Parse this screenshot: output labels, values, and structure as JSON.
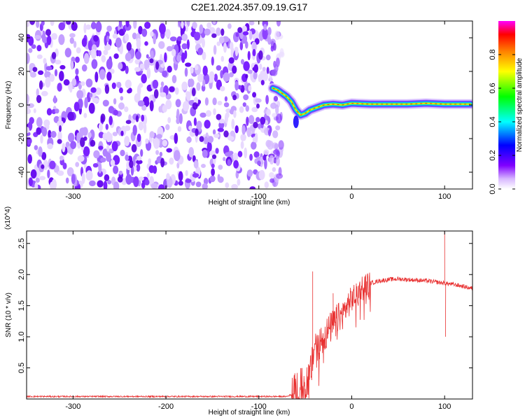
{
  "title": "C2E1.2024.357.09.19.G17",
  "chart_data": [
    {
      "type": "heatmap",
      "xlabel": "Height of straight line (km)",
      "ylabel": "Frequency (Hz)",
      "xlim": [
        -350,
        130
      ],
      "ylim": [
        -50,
        50
      ],
      "xticks": [
        -300,
        -200,
        -100,
        0,
        100
      ],
      "yticks": [
        -40,
        -20,
        0,
        20,
        40
      ],
      "colorbar": {
        "label": "Normalized spectral amplitude",
        "range": [
          0,
          1
        ],
        "ticks": [
          "0.0",
          "0.2",
          "0.4",
          "0.6",
          "0.8"
        ],
        "colors": [
          "#ffffff",
          "#8000ff",
          "#0000ff",
          "#00ffff",
          "#00ff00",
          "#ffff00",
          "#ff8000",
          "#ff0000",
          "#ff00ff"
        ]
      },
      "ridge": {
        "height_km": [
          -85,
          -80,
          -75,
          -70,
          -65,
          -60,
          -55,
          -50,
          -45,
          -40,
          -35,
          -30,
          -20,
          -10,
          0,
          20,
          40,
          60,
          80,
          100,
          128
        ],
        "frequency_hz": [
          10,
          9,
          7,
          5,
          2,
          -3,
          -6,
          -5,
          -3,
          -2,
          -1,
          0,
          0.5,
          0,
          1,
          0.5,
          0.5,
          0.5,
          1,
          0.5,
          0.5
        ]
      },
      "noise_region_km": [
        -350,
        -82
      ]
    },
    {
      "type": "line",
      "xlabel": "Height of straight line (km)",
      "ylabel": "SNR (10 * v/v)",
      "ylabel_scale": "(x10^4)",
      "xlim": [
        -350,
        130
      ],
      "ylim": [
        0,
        2.7
      ],
      "xticks": [
        -300,
        -200,
        -100,
        0,
        100
      ],
      "yticks": [
        "0.5",
        "1.0",
        "1.5",
        "2.0",
        "2.5"
      ],
      "series": [
        {
          "color": "#e83030",
          "x": [
            -350,
            -300,
            -250,
            -200,
            -150,
            -100,
            -70,
            -60,
            -55,
            -50,
            -45,
            -42,
            -40,
            -35,
            -30,
            -25,
            -20,
            -15,
            -10,
            -5,
            0,
            5,
            10,
            15,
            20,
            25,
            30,
            40,
            50,
            60,
            70,
            80,
            90,
            100,
            110,
            120,
            128
          ],
          "y": [
            0.04,
            0.04,
            0.04,
            0.04,
            0.04,
            0.04,
            0.04,
            0.1,
            0.2,
            0.25,
            0.4,
            0.6,
            0.9,
            0.9,
            1.0,
            1.1,
            1.2,
            1.3,
            1.35,
            1.5,
            1.6,
            1.7,
            1.78,
            1.82,
            1.86,
            1.88,
            1.9,
            1.92,
            1.93,
            1.92,
            1.91,
            1.9,
            1.88,
            1.86,
            1.84,
            1.81,
            1.78
          ]
        }
      ],
      "spikes": [
        {
          "x": -42,
          "y": 2.05
        },
        {
          "x": 100,
          "y": 2.7
        },
        {
          "x": 101,
          "y": 1.0
        },
        {
          "x": 15,
          "y": 2.0
        },
        {
          "x": -20,
          "y": 1.7
        }
      ]
    }
  ]
}
